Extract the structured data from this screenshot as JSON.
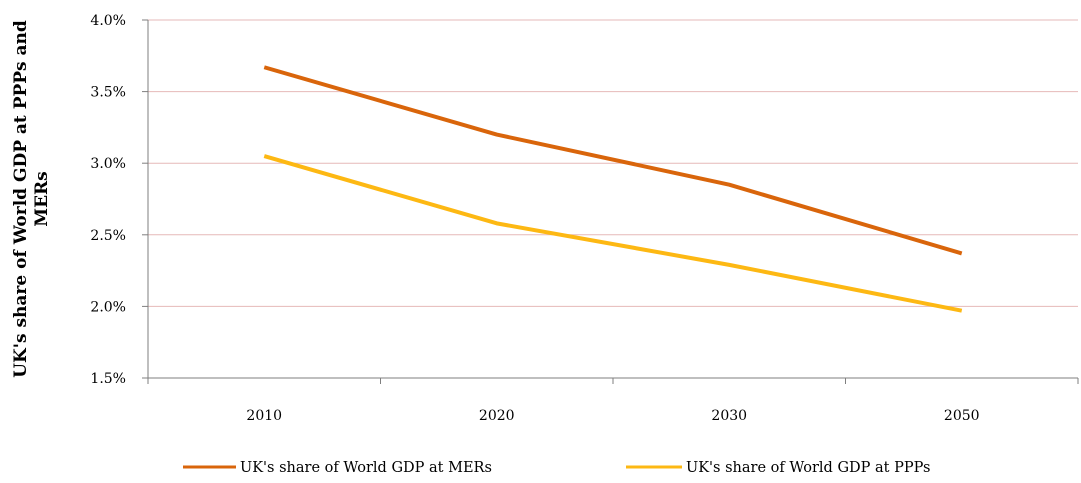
{
  "chart_data": {
    "type": "line",
    "title": "",
    "xlabel": "",
    "ylabel_lines": [
      "UK's share of World GDP at PPPs and",
      "MERs"
    ],
    "categories": [
      "2010",
      "2020",
      "2030",
      "2050"
    ],
    "ylim": [
      1.5,
      4.0
    ],
    "y_ticks": [
      1.5,
      2.0,
      2.5,
      3.0,
      3.5,
      4.0
    ],
    "y_tick_labels": [
      "1.5%",
      "2.0%",
      "2.5%",
      "3.0%",
      "3.5%",
      "4.0%"
    ],
    "grid": true,
    "legend_position": "bottom",
    "series": [
      {
        "name": "UK's share of World GDP at MERs",
        "color": "#D9650B",
        "values": [
          3.67,
          3.2,
          2.85,
          2.37
        ]
      },
      {
        "name": "UK's share of World GDP at PPPs",
        "color": "#FDB813",
        "values": [
          3.05,
          2.58,
          2.29,
          1.97
        ]
      }
    ],
    "gridline_color": "#E6B9B8"
  }
}
